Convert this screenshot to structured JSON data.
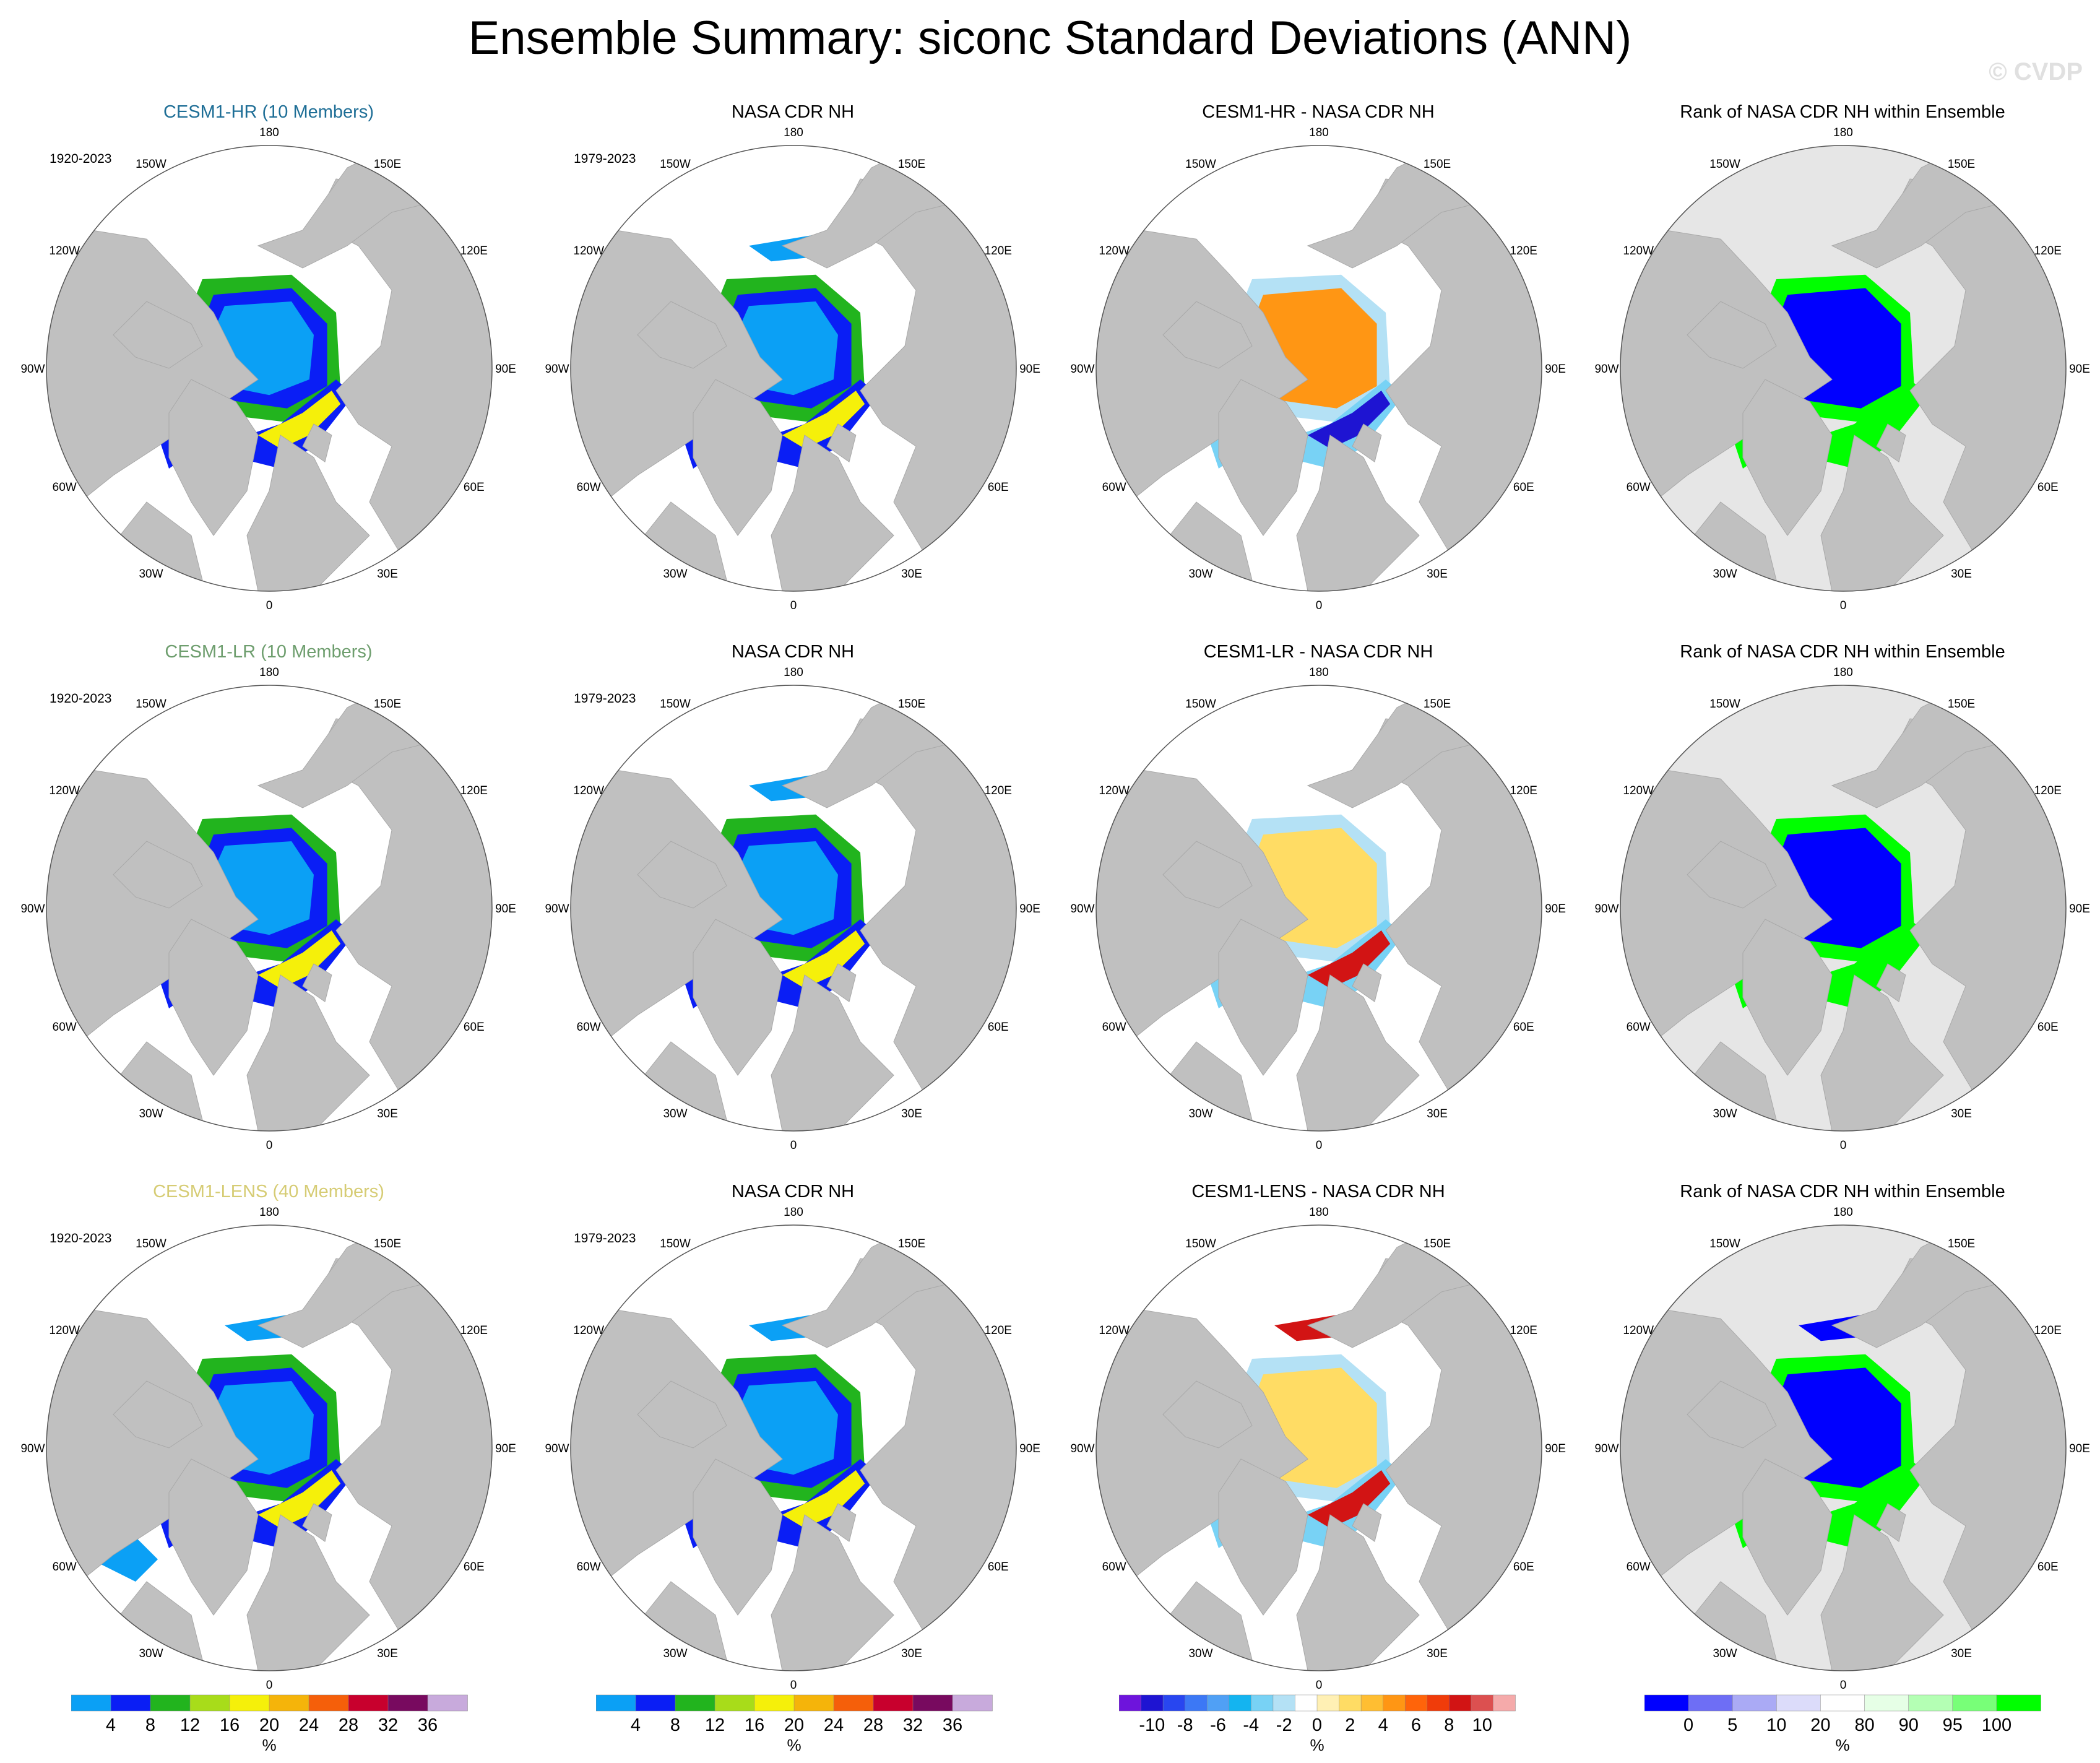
{
  "main_title": "Ensemble Summary: siconc Standard Deviations (ANN)",
  "watermark": "© CVDP",
  "longitude_labels": [
    "180",
    "150E",
    "120E",
    "90E",
    "60E",
    "30E",
    "0",
    "30W",
    "60W",
    "90W",
    "120W",
    "150W"
  ],
  "colors": {
    "land": "#c0c0c0",
    "rank_background": "#e6e6e6",
    "hr_title": "#1e6e96",
    "lr_title": "#6e9e6e",
    "lens_title": "#d6cc74"
  },
  "chart_data": [
    {
      "type": "map",
      "row": 0,
      "col": 0,
      "title_name": "CESM1-HR",
      "title_suffix": " (10 Members)",
      "title_color": "#1e6e96",
      "period": "1920-2023",
      "field": "std",
      "variant": "hr"
    },
    {
      "type": "map",
      "row": 0,
      "col": 1,
      "title": "NASA CDR NH",
      "period": "1979-2023",
      "field": "std",
      "variant": "obs"
    },
    {
      "type": "map",
      "row": 0,
      "col": 2,
      "title": "CESM1-HR - NASA CDR NH",
      "field": "diff",
      "variant": "hr"
    },
    {
      "type": "map",
      "row": 0,
      "col": 3,
      "title": "Rank of NASA CDR NH within Ensemble",
      "field": "rank",
      "variant": "hr"
    },
    {
      "type": "map",
      "row": 1,
      "col": 0,
      "title_name": "CESM1-LR",
      "title_suffix": " (10 Members)",
      "title_color": "#6e9e6e",
      "period": "1920-2023",
      "field": "std",
      "variant": "lr"
    },
    {
      "type": "map",
      "row": 1,
      "col": 1,
      "title": "NASA CDR NH",
      "period": "1979-2023",
      "field": "std",
      "variant": "obs"
    },
    {
      "type": "map",
      "row": 1,
      "col": 2,
      "title": "CESM1-LR - NASA CDR NH",
      "field": "diff",
      "variant": "lr"
    },
    {
      "type": "map",
      "row": 1,
      "col": 3,
      "title": "Rank of NASA CDR NH within Ensemble",
      "field": "rank",
      "variant": "lr"
    },
    {
      "type": "map",
      "row": 2,
      "col": 0,
      "title_name": "CESM1-LENS",
      "title_suffix": " (40 Members)",
      "title_color": "#d6cc74",
      "period": "1920-2023",
      "field": "std",
      "variant": "lens"
    },
    {
      "type": "map",
      "row": 2,
      "col": 1,
      "title": "NASA CDR NH",
      "period": "1979-2023",
      "field": "std",
      "variant": "obs"
    },
    {
      "type": "map",
      "row": 2,
      "col": 2,
      "title": "CESM1-LENS - NASA CDR NH",
      "field": "diff",
      "variant": "lens"
    },
    {
      "type": "map",
      "row": 2,
      "col": 3,
      "title": "Rank of NASA CDR NH within Ensemble",
      "field": "rank",
      "variant": "lens"
    }
  ],
  "colorbars": {
    "std": {
      "unit": "%",
      "colors": [
        "#0ba0f5",
        "#0a1ef5",
        "#22b41e",
        "#a8dc1a",
        "#f5f00a",
        "#f5b40a",
        "#f55f0a",
        "#c8002d",
        "#780a5f",
        "#c8aadc"
      ],
      "ticks": [
        "4",
        "8",
        "12",
        "16",
        "20",
        "24",
        "28",
        "32",
        "36"
      ]
    },
    "diff": {
      "unit": "%",
      "colors": [
        "#6e14dc",
        "#1e14d2",
        "#2846f0",
        "#3c78f5",
        "#50a0f5",
        "#14b4f0",
        "#78d2f5",
        "#b4e1f5",
        "#ffffff",
        "#fff0b4",
        "#ffdc64",
        "#ffbe32",
        "#ff9614",
        "#ff640a",
        "#f03c0a",
        "#d21414",
        "#dc5050",
        "#f5aaaa"
      ],
      "ticks": [
        "-10",
        "-8",
        "-6",
        "-4",
        "-2",
        "0",
        "2",
        "4",
        "6",
        "8",
        "10"
      ]
    },
    "rank": {
      "unit": "%",
      "colors": [
        "#0000ff",
        "#6e6ef5",
        "#aaaaf5",
        "#dcdcfa",
        "#ffffff",
        "#e6ffe6",
        "#b4ffb4",
        "#78ff78",
        "#00ff00"
      ],
      "ticks": [
        "0",
        "5",
        "10",
        "20",
        "80",
        "90",
        "95",
        "100"
      ]
    }
  }
}
